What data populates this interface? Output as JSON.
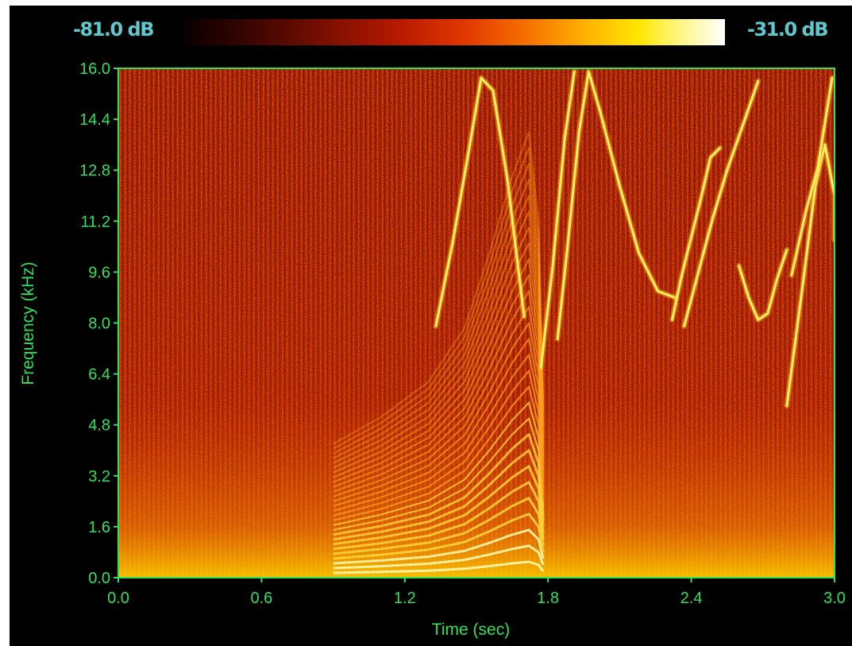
{
  "colorbar": {
    "min_label": "-81.0 dB",
    "max_label": "-31.0 dB",
    "colors": [
      "#0a0000",
      "#3a0500",
      "#7a0e00",
      "#b81a00",
      "#e23800",
      "#f56f00",
      "#ffb000",
      "#ffe600",
      "#fff57a",
      "#ffffff"
    ]
  },
  "chart_data": {
    "type": "heatmap",
    "title": "",
    "xlabel": "Time (sec)",
    "ylabel": "Frequency (kHz)",
    "xlim": [
      0.0,
      3.0
    ],
    "ylim": [
      0.0,
      16.0
    ],
    "x_ticks": [
      "0.0",
      "0.6",
      "1.2",
      "1.8",
      "2.4",
      "3.0"
    ],
    "y_ticks": [
      "0.0",
      "1.6",
      "3.2",
      "4.8",
      "6.4",
      "8.0",
      "9.6",
      "11.2",
      "12.8",
      "14.4",
      "16.0"
    ],
    "color_range_db": [
      -81.0,
      -31.0
    ],
    "axis_color": "#33e05a",
    "grid": false,
    "harmonic_sweep": {
      "fundamental_khz": [
        [
          0.9,
          0.15
        ],
        [
          1.1,
          0.18
        ],
        [
          1.3,
          0.22
        ],
        [
          1.45,
          0.28
        ],
        [
          1.55,
          0.36
        ],
        [
          1.65,
          0.45
        ],
        [
          1.72,
          0.5
        ],
        [
          1.76,
          0.4
        ],
        [
          1.78,
          0.2
        ]
      ],
      "harmonic_count": 28
    },
    "chirp_traces": [
      {
        "name": "",
        "points": [
          [
            1.33,
            7.9
          ],
          [
            1.4,
            10.5
          ],
          [
            1.47,
            13.5
          ],
          [
            1.52,
            15.7
          ],
          [
            1.57,
            15.3
          ],
          [
            1.63,
            12.5
          ],
          [
            1.7,
            8.2
          ]
        ]
      },
      {
        "name": "",
        "points": [
          [
            1.77,
            6.6
          ],
          [
            1.82,
            9.8
          ],
          [
            1.87,
            13.8
          ],
          [
            1.91,
            15.9
          ]
        ]
      },
      {
        "name": "",
        "points": [
          [
            1.84,
            7.5
          ],
          [
            1.88,
            10.3
          ],
          [
            1.93,
            14.0
          ],
          [
            1.97,
            15.9
          ],
          [
            2.02,
            14.6
          ],
          [
            2.1,
            12.3
          ],
          [
            2.18,
            10.2
          ],
          [
            2.26,
            9.0
          ],
          [
            2.33,
            8.8
          ]
        ]
      },
      {
        "name": "",
        "points": [
          [
            2.32,
            8.1
          ],
          [
            2.36,
            9.5
          ],
          [
            2.4,
            10.7
          ],
          [
            2.44,
            11.9
          ],
          [
            2.48,
            13.2
          ],
          [
            2.52,
            13.5
          ]
        ]
      },
      {
        "name": "",
        "points": [
          [
            2.37,
            7.9
          ],
          [
            2.43,
            9.6
          ],
          [
            2.49,
            11.3
          ],
          [
            2.55,
            12.8
          ],
          [
            2.62,
            14.3
          ],
          [
            2.68,
            15.6
          ]
        ]
      },
      {
        "name": "",
        "points": [
          [
            2.6,
            9.8
          ],
          [
            2.64,
            8.8
          ],
          [
            2.68,
            8.1
          ],
          [
            2.72,
            8.3
          ],
          [
            2.76,
            9.4
          ],
          [
            2.8,
            10.3
          ]
        ]
      },
      {
        "name": "",
        "points": [
          [
            2.8,
            5.4
          ],
          [
            2.86,
            8.8
          ],
          [
            2.92,
            12.3
          ],
          [
            2.96,
            13.6
          ],
          [
            3.0,
            12.0
          ],
          [
            3.0,
            10.6
          ]
        ]
      },
      {
        "name": "",
        "points": [
          [
            2.82,
            9.5
          ],
          [
            2.88,
            11.5
          ],
          [
            2.93,
            12.9
          ],
          [
            2.99,
            15.7
          ]
        ]
      }
    ]
  }
}
